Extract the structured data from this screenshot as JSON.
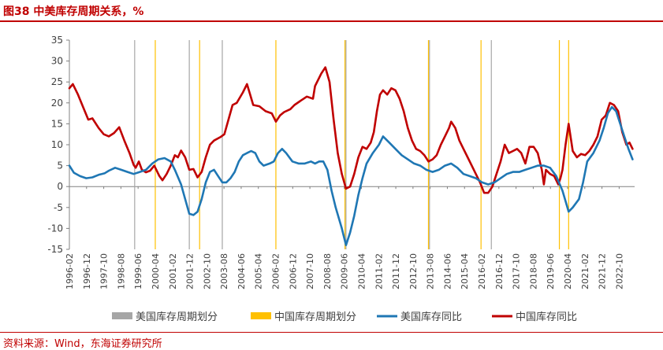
{
  "header": {
    "title": "图38  中美库存周期关系，%"
  },
  "footer": {
    "source": "资料来源：Wind，东海证券研究所"
  },
  "chart_data": {
    "type": "line",
    "title": "图38  中美库存周期关系，%",
    "ylim": [
      -15,
      35
    ],
    "yticks": [
      -15,
      -10,
      -5,
      0,
      5,
      10,
      15,
      20,
      25,
      30,
      35
    ],
    "xlim": [
      1996.083,
      2023.5
    ],
    "xtick_labels": [
      "1996-02",
      "1996-12",
      "1997-10",
      "1998-08",
      "1999-06",
      "2000-04",
      "2001-02",
      "2001-12",
      "2002-10",
      "2003-08",
      "2004-06",
      "2005-04",
      "2006-02",
      "2006-12",
      "2007-10",
      "2008-08",
      "2009-06",
      "2010-04",
      "2011-02",
      "2011-12",
      "2012-10",
      "2013-08",
      "2014-06",
      "2015-04",
      "2016-02",
      "2016-12",
      "2017-10",
      "2018-08",
      "2019-06",
      "2020-04",
      "2021-02",
      "2021-12",
      "2022-10"
    ],
    "legend": [
      {
        "name": "美国库存周期划分",
        "color": "#a6a6a6",
        "kind": "bar"
      },
      {
        "name": "中国库存周期划分",
        "color": "#ffc000",
        "kind": "bar"
      },
      {
        "name": "美国库存同比",
        "color": "#1f77b4",
        "kind": "line"
      },
      {
        "name": "中国库存同比",
        "color": "#c00000",
        "kind": "line"
      }
    ],
    "us_cycle_dividers": [
      1999.25,
      2001.9,
      2003.5,
      2009.5,
      2013.55,
      2016.55
    ],
    "cn_cycle_dividers": [
      2000.25,
      2002.4,
      2006.1,
      2009.45,
      2013.5,
      2016.05,
      2019.85,
      2020.3
    ],
    "series": [
      {
        "name": "中国库存同比",
        "color": "#c00000",
        "points": [
          [
            1996.083,
            23.5
          ],
          [
            1996.25,
            24.5
          ],
          [
            1996.5,
            22
          ],
          [
            1996.75,
            19
          ],
          [
            1997,
            16
          ],
          [
            1997.2,
            16.3
          ],
          [
            1997.5,
            14
          ],
          [
            1997.75,
            12.5
          ],
          [
            1998,
            12
          ],
          [
            1998.25,
            12.8
          ],
          [
            1998.5,
            14.2
          ],
          [
            1998.75,
            11
          ],
          [
            1999,
            8
          ],
          [
            1999.2,
            5.2
          ],
          [
            1999.3,
            4.5
          ],
          [
            1999.45,
            6
          ],
          [
            1999.6,
            4
          ],
          [
            1999.8,
            3.4
          ],
          [
            2000,
            3.8
          ],
          [
            2000.2,
            5
          ],
          [
            2000.45,
            2.5
          ],
          [
            2000.6,
            1.5
          ],
          [
            2000.8,
            3
          ],
          [
            2001,
            5
          ],
          [
            2001.2,
            7.5
          ],
          [
            2001.35,
            7
          ],
          [
            2001.5,
            8.6
          ],
          [
            2001.7,
            7
          ],
          [
            2001.9,
            4
          ],
          [
            2002.1,
            4.2
          ],
          [
            2002.3,
            2.2
          ],
          [
            2002.5,
            3.5
          ],
          [
            2002.7,
            7
          ],
          [
            2002.9,
            10
          ],
          [
            2003.1,
            11
          ],
          [
            2003.4,
            11.8
          ],
          [
            2003.6,
            12.5
          ],
          [
            2003.8,
            16
          ],
          [
            2004,
            19.5
          ],
          [
            2004.2,
            20
          ],
          [
            2004.5,
            22.5
          ],
          [
            2004.7,
            24.5
          ],
          [
            2004.85,
            22
          ],
          [
            2005,
            19.5
          ],
          [
            2005.3,
            19.2
          ],
          [
            2005.6,
            18
          ],
          [
            2005.9,
            17.5
          ],
          [
            2006.1,
            15.5
          ],
          [
            2006.3,
            17
          ],
          [
            2006.5,
            17.8
          ],
          [
            2006.8,
            18.5
          ],
          [
            2007,
            19.5
          ],
          [
            2007.3,
            20.5
          ],
          [
            2007.6,
            21.5
          ],
          [
            2007.9,
            21
          ],
          [
            2008,
            24
          ],
          [
            2008.3,
            27
          ],
          [
            2008.5,
            28.5
          ],
          [
            2008.7,
            25
          ],
          [
            2008.9,
            16
          ],
          [
            2009.1,
            8
          ],
          [
            2009.3,
            3
          ],
          [
            2009.5,
            -0.5
          ],
          [
            2009.7,
            0
          ],
          [
            2009.9,
            3
          ],
          [
            2010.1,
            7
          ],
          [
            2010.3,
            9.5
          ],
          [
            2010.5,
            9
          ],
          [
            2010.7,
            10.5
          ],
          [
            2010.85,
            13
          ],
          [
            2011,
            18
          ],
          [
            2011.15,
            22
          ],
          [
            2011.3,
            23
          ],
          [
            2011.5,
            22
          ],
          [
            2011.7,
            23.5
          ],
          [
            2011.9,
            23
          ],
          [
            2012.1,
            21
          ],
          [
            2012.3,
            18
          ],
          [
            2012.5,
            14
          ],
          [
            2012.7,
            11
          ],
          [
            2012.9,
            9
          ],
          [
            2013.1,
            8.5
          ],
          [
            2013.3,
            7.5
          ],
          [
            2013.5,
            6
          ],
          [
            2013.7,
            6.5
          ],
          [
            2013.9,
            7.5
          ],
          [
            2014.1,
            10
          ],
          [
            2014.3,
            12
          ],
          [
            2014.5,
            14
          ],
          [
            2014.6,
            15.5
          ],
          [
            2014.8,
            14
          ],
          [
            2015,
            11
          ],
          [
            2015.2,
            9
          ],
          [
            2015.4,
            7
          ],
          [
            2015.6,
            5
          ],
          [
            2015.8,
            3
          ],
          [
            2016,
            1
          ],
          [
            2016.2,
            -1.5
          ],
          [
            2016.4,
            -1.5
          ],
          [
            2016.6,
            0
          ],
          [
            2016.8,
            3
          ],
          [
            2017,
            6
          ],
          [
            2017.2,
            10
          ],
          [
            2017.4,
            8
          ],
          [
            2017.6,
            8.5
          ],
          [
            2017.8,
            9
          ],
          [
            2018,
            8
          ],
          [
            2018.2,
            5.5
          ],
          [
            2018.4,
            9.5
          ],
          [
            2018.6,
            9.5
          ],
          [
            2018.8,
            8
          ],
          [
            2019,
            4
          ],
          [
            2019.1,
            0.5
          ],
          [
            2019.2,
            4
          ],
          [
            2019.4,
            3
          ],
          [
            2019.6,
            2.5
          ],
          [
            2019.8,
            0.5
          ],
          [
            2019.9,
            2
          ],
          [
            2020,
            4
          ],
          [
            2020.15,
            10
          ],
          [
            2020.3,
            15
          ],
          [
            2020.5,
            8.5
          ],
          [
            2020.7,
            7
          ],
          [
            2020.9,
            7.8
          ],
          [
            2021.1,
            7.5
          ],
          [
            2021.3,
            8.5
          ],
          [
            2021.5,
            10
          ],
          [
            2021.7,
            12
          ],
          [
            2021.9,
            16
          ],
          [
            2022.1,
            17
          ],
          [
            2022.3,
            20
          ],
          [
            2022.5,
            19.5
          ],
          [
            2022.7,
            18
          ],
          [
            2022.9,
            13
          ],
          [
            2023.1,
            10
          ],
          [
            2023.25,
            10.5
          ],
          [
            2023.4,
            9
          ]
        ]
      },
      {
        "name": "美国库存同比",
        "color": "#1f77b4",
        "points": [
          [
            1996.083,
            5
          ],
          [
            1996.3,
            3.3
          ],
          [
            1996.6,
            2.5
          ],
          [
            1996.9,
            2
          ],
          [
            1997.2,
            2.2
          ],
          [
            1997.5,
            2.8
          ],
          [
            1997.8,
            3.2
          ],
          [
            1998,
            3.8
          ],
          [
            1998.3,
            4.5
          ],
          [
            1998.6,
            4
          ],
          [
            1998.9,
            3.5
          ],
          [
            1999.2,
            3
          ],
          [
            1999.5,
            3.5
          ],
          [
            1999.8,
            4
          ],
          [
            2000.1,
            5.5
          ],
          [
            2000.4,
            6.5
          ],
          [
            2000.7,
            6.8
          ],
          [
            2001,
            6
          ],
          [
            2001.2,
            4
          ],
          [
            2001.5,
            0.5
          ],
          [
            2001.7,
            -3
          ],
          [
            2001.9,
            -6.5
          ],
          [
            2002.1,
            -6.8
          ],
          [
            2002.3,
            -6
          ],
          [
            2002.5,
            -3
          ],
          [
            2002.7,
            1
          ],
          [
            2002.9,
            3.5
          ],
          [
            2003.1,
            4
          ],
          [
            2003.3,
            2.5
          ],
          [
            2003.5,
            1
          ],
          [
            2003.7,
            1
          ],
          [
            2003.9,
            2
          ],
          [
            2004.1,
            3.5
          ],
          [
            2004.3,
            6
          ],
          [
            2004.5,
            7.5
          ],
          [
            2004.7,
            8
          ],
          [
            2004.9,
            8.5
          ],
          [
            2005.1,
            8
          ],
          [
            2005.3,
            6
          ],
          [
            2005.5,
            5
          ],
          [
            2005.8,
            5.5
          ],
          [
            2006,
            6
          ],
          [
            2006.2,
            8
          ],
          [
            2006.4,
            9
          ],
          [
            2006.6,
            8
          ],
          [
            2006.9,
            6
          ],
          [
            2007.2,
            5.5
          ],
          [
            2007.5,
            5.5
          ],
          [
            2007.8,
            6
          ],
          [
            2008,
            5.5
          ],
          [
            2008.2,
            6
          ],
          [
            2008.4,
            6
          ],
          [
            2008.6,
            4
          ],
          [
            2008.8,
            -1
          ],
          [
            2009,
            -5
          ],
          [
            2009.3,
            -10
          ],
          [
            2009.5,
            -14
          ],
          [
            2009.7,
            -11
          ],
          [
            2009.9,
            -7
          ],
          [
            2010.1,
            -2
          ],
          [
            2010.3,
            2
          ],
          [
            2010.5,
            5.5
          ],
          [
            2010.8,
            8
          ],
          [
            2011.1,
            10
          ],
          [
            2011.3,
            12
          ],
          [
            2011.6,
            10.5
          ],
          [
            2011.9,
            9
          ],
          [
            2012.2,
            7.5
          ],
          [
            2012.5,
            6.5
          ],
          [
            2012.8,
            5.5
          ],
          [
            2013.1,
            5
          ],
          [
            2013.4,
            4
          ],
          [
            2013.7,
            3.5
          ],
          [
            2014,
            4
          ],
          [
            2014.3,
            5
          ],
          [
            2014.6,
            5.5
          ],
          [
            2014.9,
            4.5
          ],
          [
            2015.2,
            3
          ],
          [
            2015.5,
            2.5
          ],
          [
            2015.8,
            2
          ],
          [
            2016.1,
            1
          ],
          [
            2016.4,
            0.5
          ],
          [
            2016.7,
            1
          ],
          [
            2017,
            2
          ],
          [
            2017.3,
            3
          ],
          [
            2017.6,
            3.5
          ],
          [
            2017.9,
            3.5
          ],
          [
            2018.2,
            4
          ],
          [
            2018.5,
            4.5
          ],
          [
            2018.8,
            5
          ],
          [
            2019.1,
            5
          ],
          [
            2019.4,
            4.5
          ],
          [
            2019.7,
            2.5
          ],
          [
            2020,
            -1
          ],
          [
            2020.3,
            -6
          ],
          [
            2020.5,
            -5
          ],
          [
            2020.8,
            -3
          ],
          [
            2021,
            1
          ],
          [
            2021.2,
            6
          ],
          [
            2021.5,
            8
          ],
          [
            2021.8,
            11
          ],
          [
            2022,
            14
          ],
          [
            2022.2,
            17.5
          ],
          [
            2022.4,
            19
          ],
          [
            2022.6,
            18
          ],
          [
            2022.8,
            15
          ],
          [
            2023,
            12
          ],
          [
            2023.2,
            9
          ],
          [
            2023.4,
            6.5
          ]
        ]
      }
    ]
  }
}
